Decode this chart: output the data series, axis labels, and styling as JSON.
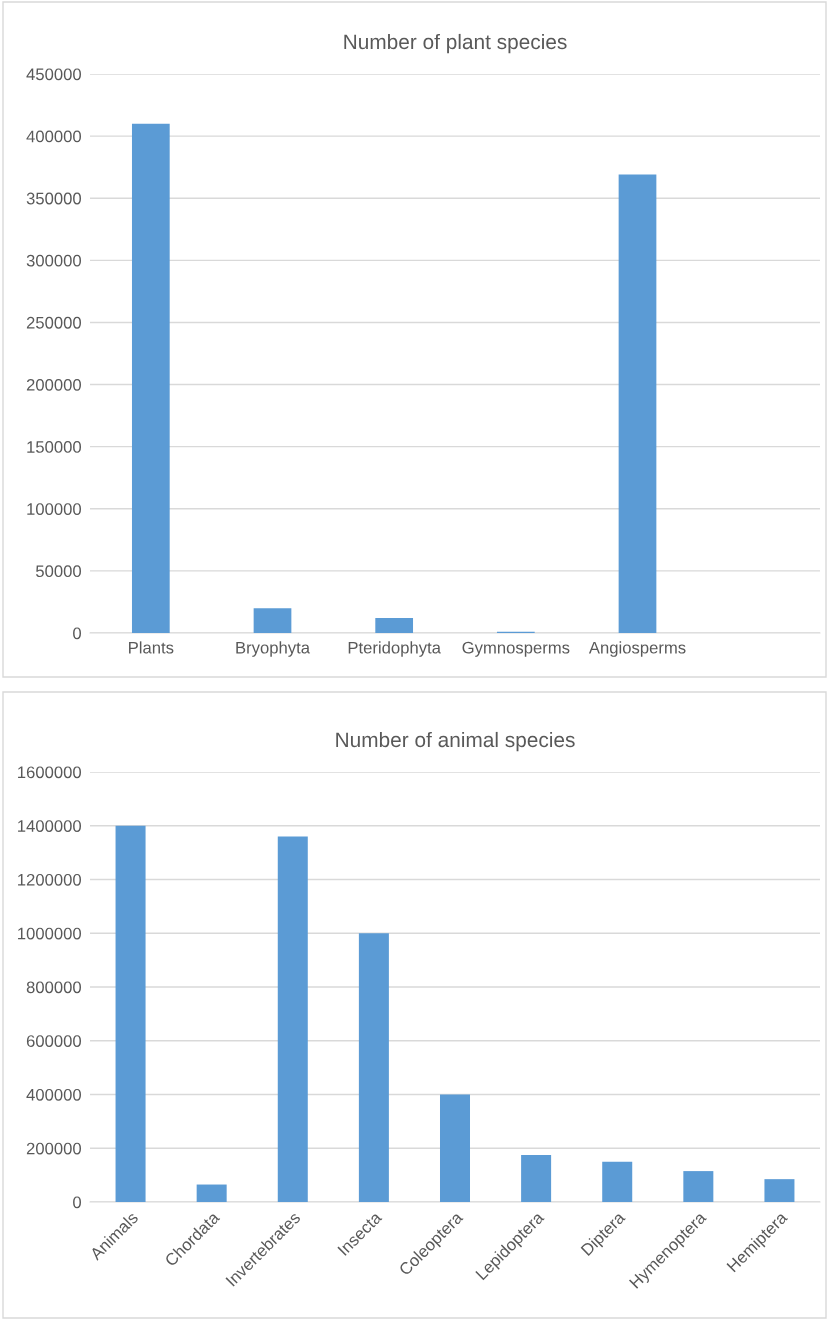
{
  "chart_data": [
    {
      "type": "bar",
      "title": "Number of plant species",
      "categories": [
        "Plants",
        "Bryophyta",
        "Pteridophyta",
        "Gymnosperms",
        "Angiosperms",
        null
      ],
      "values": [
        410000,
        20000,
        12000,
        1000,
        369000,
        null
      ],
      "color": "#5b9bd5",
      "ylim": [
        0,
        450000
      ],
      "yticks": [
        0,
        50000,
        100000,
        150000,
        200000,
        250000,
        300000,
        350000,
        400000,
        450000
      ],
      "grid": "y"
    },
    {
      "type": "bar",
      "title": "Number of animal species",
      "categories": [
        "Animals",
        "Chordata",
        "Invertebrates",
        "Insecta",
        "Coleoptera",
        "Lepidoptera",
        "Diptera",
        "Hymenoptera",
        "Hemiptera"
      ],
      "values": [
        1400000,
        65000,
        1360000,
        1000000,
        400000,
        175000,
        150000,
        115000,
        85000
      ],
      "color": "#5b9bd5",
      "ylim": [
        0,
        1600000
      ],
      "yticks": [
        0,
        200000,
        400000,
        600000,
        800000,
        1000000,
        1200000,
        1400000,
        1600000
      ],
      "grid": "y"
    }
  ]
}
